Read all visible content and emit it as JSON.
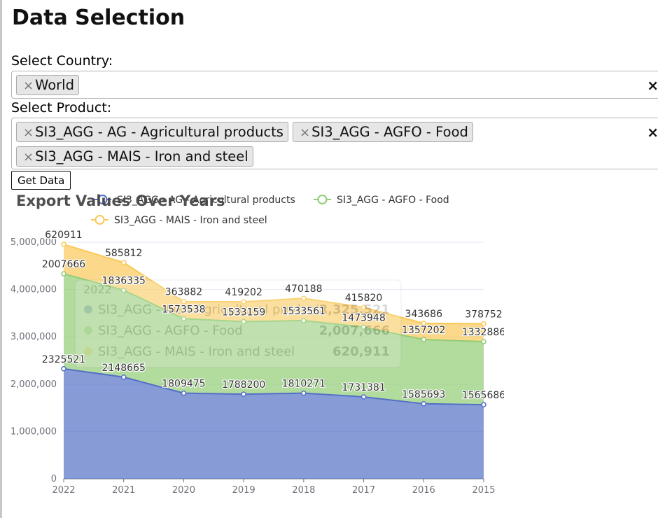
{
  "page_title": "Data Selection",
  "country": {
    "label": "Select Country:",
    "tags": [
      "World"
    ],
    "clear_icon": "×"
  },
  "product": {
    "label": "Select Product:",
    "tags": [
      "SI3_AGG - AG - Agricultural products",
      "SI3_AGG - AGFO - Food",
      "SI3_AGG - MAIS - Iron and steel"
    ],
    "clear_icon": "×"
  },
  "tag_remove_icon": "×",
  "get_data_button": "Get Data",
  "chart_data": {
    "type": "area",
    "title": "Export Values Over Years",
    "stacked": true,
    "legend_position": "top",
    "x": [
      "2022",
      "2021",
      "2020",
      "2019",
      "2018",
      "2017",
      "2016",
      "2015"
    ],
    "y_ticks": [
      "0",
      "1,000,000",
      "2,000,000",
      "3,000,000",
      "4,000,000",
      "5,000,000"
    ],
    "ylim": [
      0,
      5000000
    ],
    "grid": true,
    "series": [
      {
        "name": "SI3_AGG - AG - Agricultural products",
        "color": "#5470c6",
        "values": [
          2325521,
          2148665,
          1809475,
          1788200,
          1810271,
          1731381,
          1585693,
          1565686
        ]
      },
      {
        "name": "SI3_AGG - AGFO - Food",
        "color": "#91cc75",
        "values": [
          2007666,
          1836335,
          1573538,
          1533159,
          1533561,
          1473948,
          1357202,
          1332886
        ]
      },
      {
        "name": "SI3_AGG - MAIS - Iron and steel",
        "color": "#fac858",
        "values": [
          620911,
          585812,
          363882,
          419202,
          470188,
          415820,
          343686,
          378752
        ]
      }
    ],
    "tooltip": {
      "header": "2022",
      "rows": [
        {
          "name": "SI3_AGG - AG - Agricultural products",
          "value": "2,325,521"
        },
        {
          "name": "SI3_AGG - AGFO - Food",
          "value": "2,007,666"
        },
        {
          "name": "SI3_AGG - MAIS - Iron and steel",
          "value": "620,911"
        }
      ]
    }
  }
}
